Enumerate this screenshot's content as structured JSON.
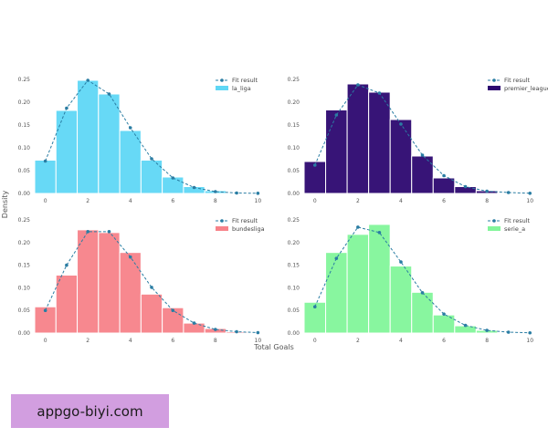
{
  "chart_data": {
    "type": "bar",
    "shared_xlabel": "Total Goals",
    "shared_ylabel": "Density",
    "grid": false,
    "xlim": [
      -0.5,
      10.5
    ],
    "ylim": [
      0,
      0.26
    ],
    "x_ticks": [
      0,
      2,
      4,
      6,
      8,
      10
    ],
    "y_ticks": [
      0.0,
      0.05,
      0.1,
      0.15,
      0.2,
      0.25
    ],
    "legend_placement": "top-right",
    "fit_label": "Fit result",
    "fit_color": "#2a7da3",
    "panels": [
      {
        "name": "la_liga",
        "color": "#5fd7f5",
        "categories": [
          0,
          1,
          2,
          3,
          4,
          5,
          6,
          7,
          8,
          9,
          10
        ],
        "values": [
          0.073,
          0.182,
          0.248,
          0.218,
          0.138,
          0.073,
          0.036,
          0.015,
          0.006,
          0.002,
          0.001
        ],
        "fit": [
          0.071,
          0.187,
          0.248,
          0.218,
          0.144,
          0.076,
          0.034,
          0.013,
          0.004,
          0.001,
          0.0003
        ]
      },
      {
        "name": "premier_league",
        "color": "#2c0770",
        "categories": [
          0,
          1,
          2,
          3,
          4,
          5,
          6,
          7,
          8,
          9,
          10
        ],
        "values": [
          0.07,
          0.183,
          0.24,
          0.222,
          0.162,
          0.082,
          0.034,
          0.015,
          0.006,
          0.002,
          0.001
        ],
        "fit": [
          0.062,
          0.172,
          0.238,
          0.22,
          0.152,
          0.084,
          0.039,
          0.015,
          0.005,
          0.002,
          0.0004
        ]
      },
      {
        "name": "bundesliga",
        "color": "#f78289",
        "categories": [
          0,
          1,
          2,
          3,
          4,
          5,
          6,
          7,
          8,
          9,
          10
        ],
        "values": [
          0.058,
          0.128,
          0.228,
          0.222,
          0.178,
          0.086,
          0.056,
          0.022,
          0.01,
          0.003,
          0.001
        ],
        "fit": [
          0.05,
          0.15,
          0.224,
          0.224,
          0.168,
          0.101,
          0.05,
          0.022,
          0.008,
          0.003,
          0.001
        ]
      },
      {
        "name": "serie_a",
        "color": "#82f59a",
        "categories": [
          0,
          1,
          2,
          3,
          4,
          5,
          6,
          7,
          8,
          9,
          10
        ],
        "values": [
          0.068,
          0.178,
          0.218,
          0.24,
          0.148,
          0.09,
          0.04,
          0.016,
          0.006,
          0.002,
          0.001
        ],
        "fit": [
          0.058,
          0.165,
          0.234,
          0.222,
          0.157,
          0.089,
          0.042,
          0.017,
          0.006,
          0.002,
          0.0005
        ]
      }
    ]
  },
  "watermark": {
    "text": "appgo-biyi.com"
  }
}
